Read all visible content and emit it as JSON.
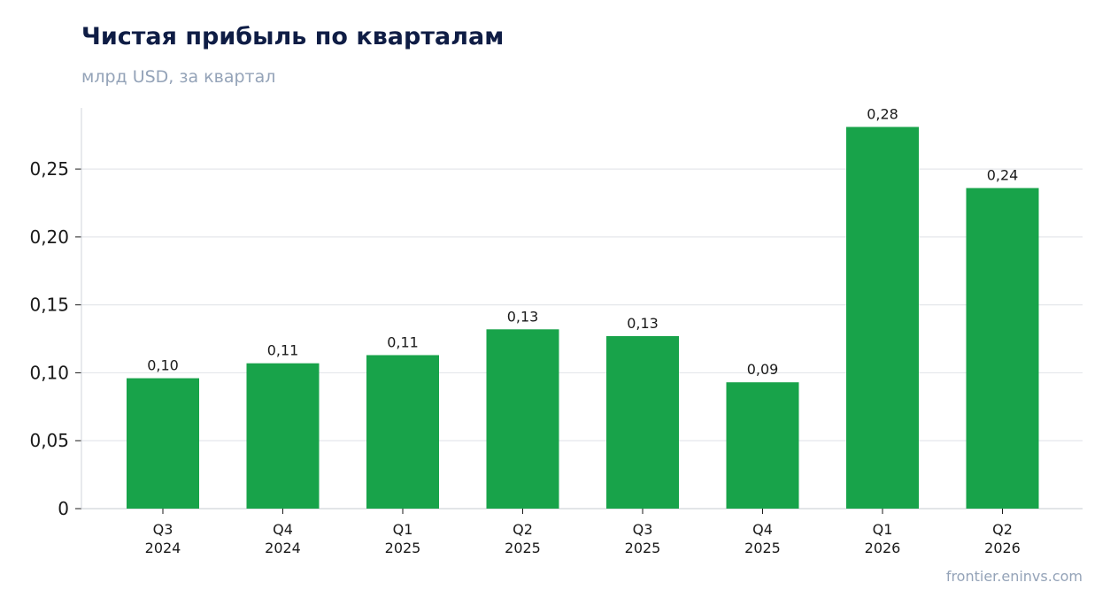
{
  "header": {
    "title": "Чистая прибыль по кварталам",
    "subtitle": "млрд USD, за квартал"
  },
  "footer": {
    "source": "frontier.eninvs.com"
  },
  "chart_data": {
    "type": "bar",
    "title": "Чистая прибыль по кварталам",
    "subtitle": "млрд USD, за квартал",
    "xlabel": "",
    "ylabel": "",
    "categories": [
      [
        "Q3",
        "2024"
      ],
      [
        "Q4",
        "2024"
      ],
      [
        "Q1",
        "2025"
      ],
      [
        "Q2",
        "2025"
      ],
      [
        "Q3",
        "2025"
      ],
      [
        "Q4",
        "2025"
      ],
      [
        "Q1",
        "2026"
      ],
      [
        "Q2",
        "2026"
      ]
    ],
    "values": [
      0.096,
      0.107,
      0.113,
      0.132,
      0.127,
      0.093,
      0.281,
      0.236
    ],
    "data_labels": [
      "0,10",
      "0,11",
      "0,11",
      "0,13",
      "0,13",
      "0,09",
      "0,28",
      "0,24"
    ],
    "yticks": [
      0,
      0.05,
      0.1,
      0.15,
      0.2,
      0.25
    ],
    "ytick_labels": [
      "0",
      "0,05",
      "0,10",
      "0,15",
      "0,20",
      "0,25"
    ],
    "ylim": [
      0,
      0.295
    ],
    "grid": true,
    "bar_color": "#18a34a",
    "grid_color": "#e5e7eb",
    "axis_color": "#d1d5db"
  }
}
